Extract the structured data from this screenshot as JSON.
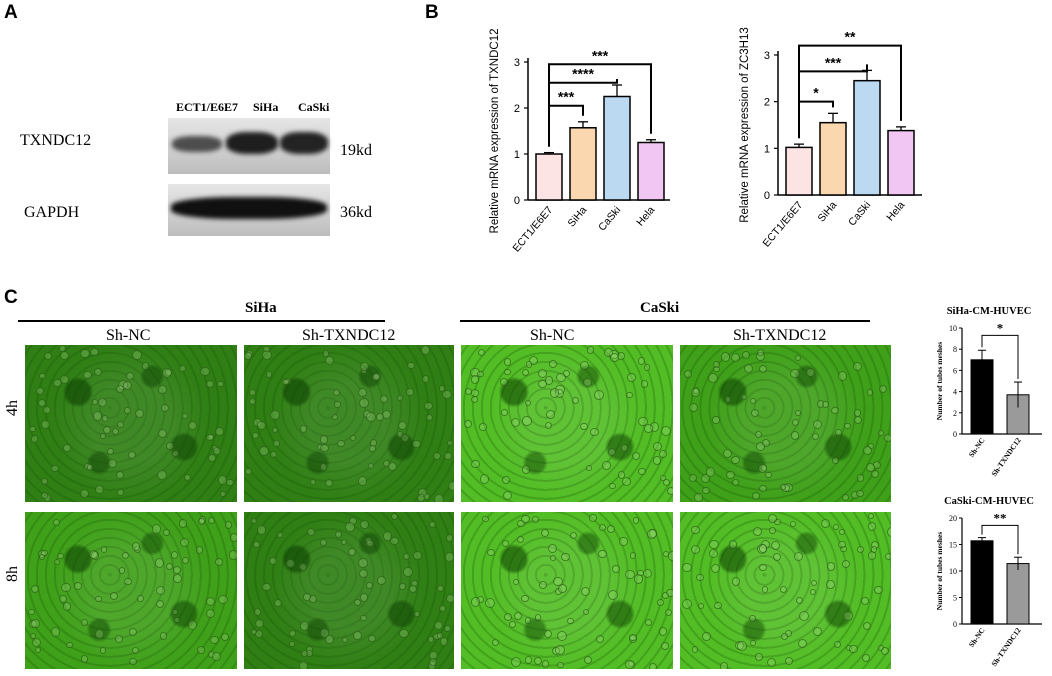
{
  "panel_labels": {
    "a": "A",
    "b": "B",
    "c": "C"
  },
  "panel_a": {
    "lanes": [
      "ECT1/E6E7",
      "SiHa",
      "CaSki"
    ],
    "rows": [
      {
        "protein": "TXNDC12",
        "size": "19kd"
      },
      {
        "protein": "GAPDH",
        "size": "36kd"
      }
    ]
  },
  "colors": {
    "ECT1": "#fde4e4",
    "SiHa": "#fbd7b0",
    "CaSki": "#bcd9f2",
    "Hela": "#f2c6f2",
    "sh_nc": "#000000",
    "sh_txndc12": "#9a9a9a",
    "micrograph": "#3fa019"
  },
  "panel_b_left": {
    "ylabel": "Relative mRNA expression of TXNDC12",
    "ylim": [
      0,
      3
    ],
    "yticks": [
      "0",
      "1",
      "2",
      "3"
    ],
    "categories": [
      "ECT1/E6E7",
      "SiHa",
      "CaSki",
      "Hela"
    ],
    "values": [
      1.0,
      1.57,
      2.25,
      1.25
    ],
    "errors": [
      0.03,
      0.13,
      0.25,
      0.06
    ],
    "significance": [
      {
        "label": "***",
        "from": 0,
        "to": 1
      },
      {
        "label": "****",
        "from": 0,
        "to": 2
      },
      {
        "label": "***",
        "from": 0,
        "to": 3
      }
    ]
  },
  "panel_b_right": {
    "ylabel": "Relative mRNA expression of ZC3H13",
    "ylim": [
      0,
      3
    ],
    "yticks": [
      "0",
      "1",
      "2",
      "3"
    ],
    "categories": [
      "ECT1/E6E7",
      "SiHa",
      "CaSki",
      "Hela"
    ],
    "values": [
      1.02,
      1.55,
      2.45,
      1.38
    ],
    "errors": [
      0.07,
      0.2,
      0.22,
      0.08
    ],
    "significance": [
      {
        "label": "*",
        "from": 0,
        "to": 1
      },
      {
        "label": "***",
        "from": 0,
        "to": 2
      },
      {
        "label": "**",
        "from": 0,
        "to": 3
      }
    ]
  },
  "panel_c": {
    "groups": [
      "SiHa",
      "CaSki"
    ],
    "columns": [
      "Sh-NC",
      "Sh-TXNDC12",
      "Sh-NC",
      "Sh-TXNDC12"
    ],
    "rows": [
      "4h",
      "8h"
    ]
  },
  "chart_data": [
    {
      "type": "bar",
      "title": "",
      "xlabel": "",
      "ylabel": "Relative mRNA expression of TXNDC12",
      "categories": [
        "ECT1/E6E7",
        "SiHa",
        "CaSki",
        "Hela"
      ],
      "values": [
        1.0,
        1.57,
        2.25,
        1.25
      ],
      "ylim": [
        0,
        3
      ]
    },
    {
      "type": "bar",
      "title": "",
      "xlabel": "",
      "ylabel": "Relative mRNA expression of ZC3H13",
      "categories": [
        "ECT1/E6E7",
        "SiHa",
        "CaSki",
        "Hela"
      ],
      "values": [
        1.02,
        1.55,
        2.45,
        1.38
      ],
      "ylim": [
        0,
        3
      ]
    },
    {
      "type": "bar",
      "title": "SiHa-CM-HUVEC",
      "xlabel": "",
      "ylabel": "Number of tubes meshes",
      "categories": [
        "Sh-NC",
        "Sh-TXNDC12"
      ],
      "values": [
        7.0,
        3.7
      ],
      "errors": [
        0.9,
        1.2
      ],
      "ylim": [
        0,
        10
      ],
      "yticks": [
        "0",
        "2",
        "4",
        "6",
        "8",
        "10"
      ],
      "significance": [
        {
          "label": "*",
          "from": 0,
          "to": 1
        }
      ]
    },
    {
      "type": "bar",
      "title": "CaSki-CM-HUVEC",
      "xlabel": "",
      "ylabel": "Number of tubes meshes",
      "categories": [
        "Sh-NC",
        "Sh-TXNDC12"
      ],
      "values": [
        15.7,
        11.4
      ],
      "errors": [
        0.6,
        1.2
      ],
      "ylim": [
        0,
        20
      ],
      "yticks": [
        "0",
        "5",
        "10",
        "15",
        "20"
      ],
      "significance": [
        {
          "label": "**",
          "from": 0,
          "to": 1
        }
      ]
    }
  ]
}
